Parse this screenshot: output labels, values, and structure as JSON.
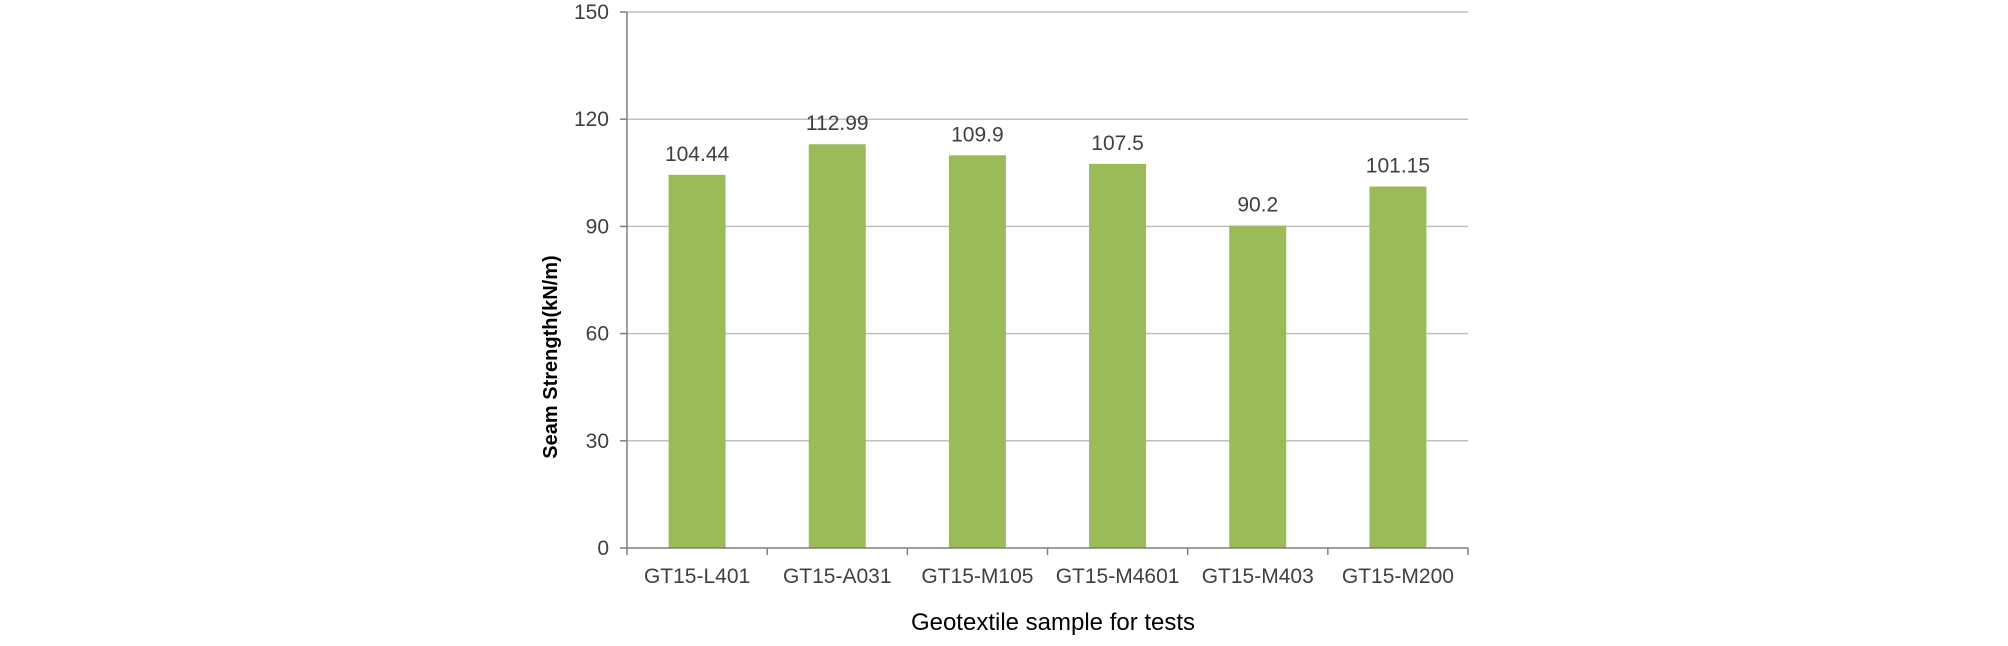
{
  "chart_data": {
    "type": "bar",
    "title": "",
    "xlabel": "Geotextile sample for tests",
    "ylabel": "Seam Strength(kN/m)",
    "categories": [
      "GT15-L401",
      "GT15-A031",
      "GT15-M105",
      "GT15-M4601",
      "GT15-M403",
      "GT15-M200"
    ],
    "series": [
      {
        "values": [
          104.44,
          112.99,
          109.9,
          107.5,
          90.2,
          101.15
        ],
        "labels": [
          "104.44",
          "112.99",
          "109.9",
          "107.5",
          "90.2",
          "101.15"
        ],
        "color": "#9bbb59"
      }
    ],
    "ylim": [
      0,
      150
    ],
    "yticks": [
      0,
      30,
      60,
      90,
      120,
      150
    ],
    "grid": true,
    "legend": "none",
    "colors": {
      "bar": "#9bbb59",
      "grid": "#bfbfbf",
      "axis": "#7f7f7f"
    }
  }
}
